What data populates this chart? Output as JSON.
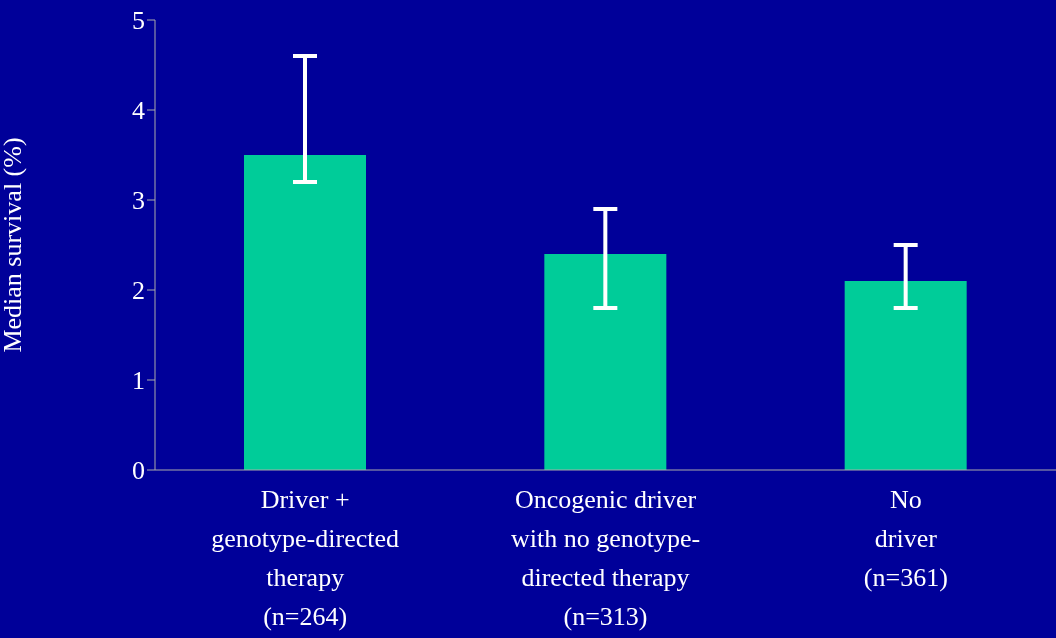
{
  "chart_data": {
    "type": "bar",
    "ylabel": "Median survival (%)",
    "categories": [
      "Driver +\ngenotype-directed\ntherapy\n(n=264)",
      "Oncogenic driver\nwith no genotype-\ndirected therapy\n(n=313)",
      "No\ndriver\n(n=361)"
    ],
    "values": [
      3.5,
      2.4,
      2.1
    ],
    "errors": [
      [
        3.2,
        4.6
      ],
      [
        1.8,
        2.9
      ],
      [
        1.8,
        2.5
      ]
    ],
    "color": "#00cc99",
    "ylim": [
      0,
      5
    ],
    "yticks": [
      0,
      1,
      2,
      3,
      4,
      5
    ],
    "grid": false,
    "legend": false
  }
}
